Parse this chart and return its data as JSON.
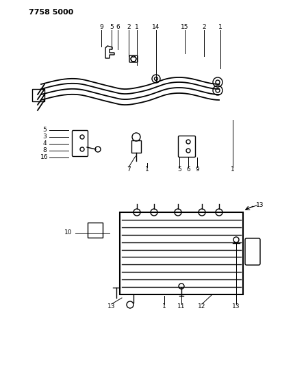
{
  "title": "7758 5000",
  "bg_color": "#ffffff",
  "fg_color": "#000000",
  "fig_width": 4.28,
  "fig_height": 5.33,
  "dpi": 100
}
